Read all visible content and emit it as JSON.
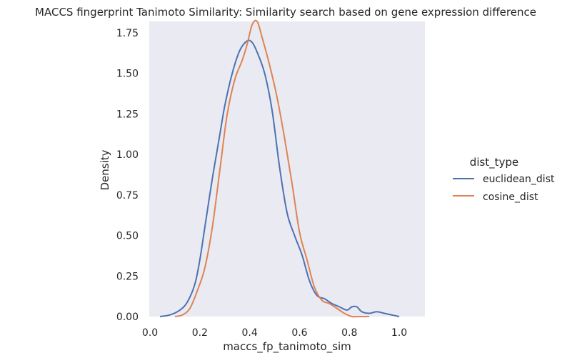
{
  "chart_data": {
    "type": "line",
    "title": "MACCS fingerprint Tanimoto Similarity: Similarity search based on gene expression difference",
    "xlabel": "maccs_fp_tanimoto_sim",
    "ylabel": "Density",
    "xlim": [
      -0.003,
      1.103
    ],
    "ylim": [
      0,
      1.82
    ],
    "xticks": [
      0.0,
      0.2,
      0.4,
      0.6,
      0.8,
      1.0
    ],
    "xtick_labels": [
      "0.0",
      "0.2",
      "0.4",
      "0.6",
      "0.8",
      "1.0"
    ],
    "yticks": [
      0.0,
      0.25,
      0.5,
      0.75,
      1.0,
      1.25,
      1.5,
      1.75
    ],
    "ytick_labels": [
      "0.00",
      "0.25",
      "0.50",
      "0.75",
      "1.00",
      "1.25",
      "1.50",
      "1.75"
    ],
    "grid": false,
    "legend": {
      "title": "dist_type",
      "placement": "right"
    },
    "series": [
      {
        "name": "euclidean_dist",
        "color": "#4c72b0",
        "x": [
          0.04,
          0.08,
          0.12,
          0.15,
          0.18,
          0.2,
          0.22,
          0.25,
          0.28,
          0.3,
          0.33,
          0.36,
          0.39,
          0.41,
          0.43,
          0.46,
          0.49,
          0.52,
          0.55,
          0.58,
          0.61,
          0.64,
          0.67,
          0.7,
          0.73,
          0.76,
          0.79,
          0.81,
          0.83,
          0.85,
          0.88,
          0.91,
          0.94,
          0.97,
          1.0
        ],
        "y": [
          0.0,
          0.01,
          0.04,
          0.09,
          0.2,
          0.35,
          0.55,
          0.85,
          1.12,
          1.3,
          1.5,
          1.64,
          1.7,
          1.69,
          1.63,
          1.5,
          1.27,
          0.92,
          0.64,
          0.5,
          0.38,
          0.22,
          0.13,
          0.11,
          0.08,
          0.06,
          0.04,
          0.06,
          0.06,
          0.03,
          0.02,
          0.03,
          0.02,
          0.01,
          0.0
        ]
      },
      {
        "name": "cosine_dist",
        "color": "#dd8452",
        "x": [
          0.1,
          0.13,
          0.16,
          0.19,
          0.22,
          0.25,
          0.28,
          0.31,
          0.34,
          0.37,
          0.39,
          0.41,
          0.43,
          0.45,
          0.48,
          0.51,
          0.54,
          0.57,
          0.6,
          0.63,
          0.66,
          0.69,
          0.72,
          0.75,
          0.78,
          0.81,
          0.84,
          0.88
        ],
        "y": [
          0.0,
          0.01,
          0.05,
          0.16,
          0.3,
          0.55,
          0.9,
          1.25,
          1.46,
          1.58,
          1.68,
          1.8,
          1.82,
          1.72,
          1.55,
          1.35,
          1.1,
          0.82,
          0.52,
          0.35,
          0.18,
          0.1,
          0.08,
          0.05,
          0.02,
          0.0,
          0.0,
          0.0
        ]
      }
    ]
  }
}
